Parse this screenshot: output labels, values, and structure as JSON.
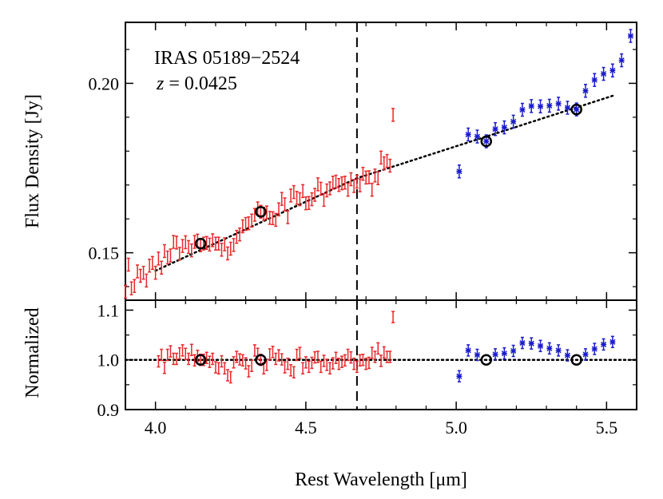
{
  "chart_data": {
    "type": "scatter",
    "annotation": {
      "object": "IRAS 05189−2524",
      "z_symbol": "z",
      "z_value": " = 0.0425"
    },
    "xlabel": "Rest Wavelength  [μm]",
    "x_ticks": [
      "4.0",
      "4.5",
      "5.0",
      "5.5"
    ],
    "xlim": [
      3.9,
      5.6
    ],
    "vertical_line_x": 4.67,
    "panels": [
      {
        "ylabel": "Flux Density [Jy]",
        "ylim": [
          0.136,
          0.218
        ],
        "y_ticks": [
          "0.15",
          "0.20"
        ],
        "y_tick_values": [
          0.15,
          0.2
        ],
        "continuum_fit": {
          "x": [
            4.0,
            4.67,
            5.53
          ],
          "y": [
            0.1447,
            0.172,
            0.1966
          ]
        },
        "anchor_points": {
          "x": [
            4.15,
            4.35,
            5.1,
            5.4
          ],
          "y": [
            0.1527,
            0.1621,
            0.1829,
            0.1923
          ]
        },
        "series": [
          {
            "color": "#e8282a",
            "marker": "errorbar-tick",
            "x": [
              3.9,
              3.91,
              3.92,
              3.93,
              3.94,
              3.95,
              3.96,
              3.97,
              3.98,
              3.99,
              4.0,
              4.01,
              4.02,
              4.03,
              4.04,
              4.05,
              4.06,
              4.07,
              4.08,
              4.09,
              4.1,
              4.11,
              4.12,
              4.13,
              4.14,
              4.15,
              4.16,
              4.17,
              4.18,
              4.19,
              4.2,
              4.21,
              4.22,
              4.23,
              4.24,
              4.25,
              4.26,
              4.27,
              4.28,
              4.29,
              4.3,
              4.31,
              4.32,
              4.33,
              4.34,
              4.35,
              4.36,
              4.37,
              4.38,
              4.39,
              4.4,
              4.41,
              4.42,
              4.43,
              4.44,
              4.45,
              4.46,
              4.47,
              4.48,
              4.49,
              4.5,
              4.51,
              4.52,
              4.53,
              4.54,
              4.55,
              4.56,
              4.57,
              4.58,
              4.59,
              4.6,
              4.61,
              4.62,
              4.63,
              4.64,
              4.65,
              4.66,
              4.67,
              4.68,
              4.69,
              4.7,
              4.71,
              4.72,
              4.73,
              4.74,
              4.75,
              4.76,
              4.77,
              4.78,
              4.79
            ],
            "y": [
              0.1385,
              0.1465,
              0.1395,
              0.1402,
              0.1445,
              0.1432,
              0.1441,
              0.1418,
              0.1462,
              0.147,
              0.1441,
              0.1483,
              0.1456,
              0.1505,
              0.1486,
              0.1492,
              0.1532,
              0.153,
              0.1497,
              0.152,
              0.1531,
              0.1517,
              0.1507,
              0.1532,
              0.1536,
              0.1522,
              0.1527,
              0.1529,
              0.1524,
              0.1537,
              0.1527,
              0.1527,
              0.1509,
              0.1525,
              0.1498,
              0.1512,
              0.1523,
              0.1547,
              0.1554,
              0.1578,
              0.1585,
              0.1587,
              0.1595,
              0.1612,
              0.1631,
              0.1621,
              0.1615,
              0.1619,
              0.1603,
              0.1602,
              0.1597,
              0.1628,
              0.1659,
              0.1643,
              0.1605,
              0.1669,
              0.1679,
              0.1662,
              0.1658,
              0.1682,
              0.1646,
              0.1647,
              0.1658,
              0.1671,
              0.1702,
              0.1689,
              0.1656,
              0.1684,
              0.169,
              0.1707,
              0.171,
              0.17,
              0.1705,
              0.1707,
              0.1686,
              0.1717,
              0.1697,
              0.171,
              0.1699,
              0.1733,
              0.1722,
              0.1723,
              0.1686,
              0.1728,
              0.172,
              0.1781,
              0.1764,
              0.1771,
              0.1757,
              0.1907
            ]
          },
          {
            "color": "#1a1acc",
            "marker": "errorbar-star",
            "x": [
              5.01,
              5.04,
              5.07,
              5.1,
              5.13,
              5.16,
              5.19,
              5.22,
              5.25,
              5.28,
              5.31,
              5.34,
              5.37,
              5.4,
              5.43,
              5.46,
              5.49,
              5.52,
              5.55,
              5.58
            ],
            "y": [
              0.174,
              0.1849,
              0.1843,
              0.1829,
              0.1865,
              0.187,
              0.1887,
              0.1922,
              0.1933,
              0.1932,
              0.1934,
              0.194,
              0.1928,
              0.1923,
              0.1978,
              0.201,
              0.2028,
              0.2038,
              0.2068,
              0.214
            ]
          }
        ]
      },
      {
        "ylabel": "Normalized",
        "ylim": [
          0.9,
          1.12
        ],
        "y_ticks": [
          "0.9",
          "1.0",
          "1.1"
        ],
        "y_tick_values": [
          0.9,
          1.0,
          1.1
        ],
        "reference_line_y": 1.0,
        "anchor_points": {
          "x": [
            4.15,
            4.35,
            5.1,
            5.4
          ],
          "y": [
            1.0,
            1.0,
            1.0,
            1.0
          ]
        },
        "series": [
          {
            "color": "#e8282a",
            "marker": "errorbar-tick",
            "x": [
              4.01,
              4.02,
              4.03,
              4.04,
              4.05,
              4.06,
              4.07,
              4.08,
              4.09,
              4.1,
              4.11,
              4.12,
              4.13,
              4.14,
              4.15,
              4.16,
              4.17,
              4.18,
              4.19,
              4.2,
              4.21,
              4.22,
              4.23,
              4.24,
              4.25,
              4.26,
              4.27,
              4.28,
              4.29,
              4.3,
              4.31,
              4.32,
              4.33,
              4.34,
              4.35,
              4.36,
              4.37,
              4.38,
              4.39,
              4.4,
              4.41,
              4.42,
              4.43,
              4.44,
              4.45,
              4.46,
              4.47,
              4.48,
              4.49,
              4.5,
              4.51,
              4.52,
              4.53,
              4.54,
              4.55,
              4.56,
              4.57,
              4.58,
              4.59,
              4.6,
              4.61,
              4.62,
              4.63,
              4.64,
              4.65,
              4.66,
              4.67,
              4.68,
              4.69,
              4.7,
              4.71,
              4.72,
              4.73,
              4.74,
              4.75,
              4.76,
              4.77,
              4.78,
              4.79
            ],
            "y": [
              0.997,
              1.01,
              0.984,
              1.01,
              1.017,
              1.002,
              1.002,
              1.013,
              1.019,
              1.012,
              1.002,
              1.02,
              0.999,
              1.008,
              1.0,
              1.0,
              1.004,
              0.996,
              1.002,
              0.985,
              0.983,
              0.997,
              0.983,
              0.969,
              0.965,
              0.995,
              1.006,
              1.001,
              0.999,
              0.993,
              0.977,
              0.988,
              1.019,
              1.012,
              1.0,
              0.983,
              0.99,
              1.011,
              1.016,
              1.002,
              1.009,
              1.001,
              0.985,
              0.992,
              0.979,
              0.975,
              1.01,
              1.014,
              0.983,
              0.995,
              0.986,
              0.994,
              1.005,
              1.006,
              0.986,
              0.998,
              0.99,
              0.983,
              0.993,
              1.004,
              0.992,
              0.996,
              0.999,
              1.01,
              1.005,
              0.992,
              0.986,
              0.999,
              1.0,
              0.992,
              0.994,
              1.014,
              1.006,
              1.023,
              0.998,
              1.015,
              1.006,
              1.006,
              1.086
            ]
          },
          {
            "color": "#1a1acc",
            "marker": "errorbar-star",
            "x": [
              5.01,
              5.04,
              5.07,
              5.13,
              5.16,
              5.19,
              5.22,
              5.25,
              5.28,
              5.31,
              5.34,
              5.37,
              5.43,
              5.46,
              5.49,
              5.52
            ],
            "y": [
              0.967,
              1.019,
              1.01,
              1.011,
              1.013,
              1.018,
              1.034,
              1.033,
              1.028,
              1.023,
              1.019,
              1.009,
              1.011,
              1.022,
              1.031,
              1.036
            ]
          }
        ]
      }
    ]
  }
}
